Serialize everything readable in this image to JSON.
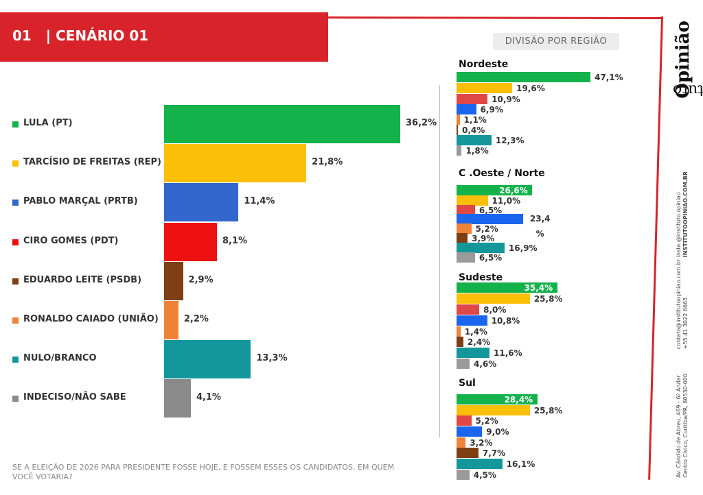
{
  "header": {
    "number": "01",
    "separator": "|",
    "title": "CENÁRIO 01"
  },
  "region_heading": "DIVISÃO POR REGIÃO",
  "question": "SE A ELEIÇÃO DE 2026 PARA PRESIDENTE FOSSE HOJE, E FOSSEM ESSES OS CANDIDATOS, EM QUEM VOCÊ VOTARIA?",
  "brand": {
    "name_a": "Instituto ",
    "name_b": "Opinião"
  },
  "contacts": {
    "social_1": "insta @instituto.opiniao",
    "social_2": "INSTITUTOOPINIAO.COM.BR",
    "email": "contato@institutoopiniao.com.br",
    "phone": "+55 41 3022 6665",
    "address_1": "Av. Cândido de Abreu, 469 - 6º Andar",
    "address_2": "Centro Cívico, Curitiba/PR, 80530-000"
  },
  "colors": [
    "#13b24b",
    "#fbbf07",
    "#3366cc",
    "#ee1111",
    "#7f3f14",
    "#ef8337",
    "#13979b",
    "#8a8a8a"
  ],
  "region_colors": [
    "#13b24b",
    "#fbbf07",
    "#e04848",
    "#1a66ee",
    "#ef8337",
    "#7f3f14",
    "#13979b",
    "#9a9a9a"
  ],
  "chart_data": [
    {
      "type": "bar",
      "title": "CENÁRIO 01",
      "categories": [
        "LULA (PT)",
        "TARCÍSIO DE FREITAS (REP)",
        "PABLO MARÇAL (PRTB)",
        "CIRO GOMES (PDT)",
        "EDUARDO LEITE (PSDB)",
        "RONALDO CAIADO (UNIÃO)",
        "NULO/BRANCO",
        "INDECISO/NÃO SABE"
      ],
      "values": [
        36.2,
        21.8,
        11.4,
        8.1,
        2.9,
        2.2,
        13.3,
        4.1
      ],
      "labels": [
        "36,2%",
        "21,8%",
        "11,4%",
        "8,1%",
        "2,9%",
        "2,2%",
        "13,3%",
        "4,1%"
      ]
    },
    {
      "type": "bar",
      "title": "Nordeste",
      "values": [
        47.1,
        19.6,
        10.9,
        6.9,
        1.1,
        0.4,
        12.3,
        1.8
      ],
      "labels": [
        "47,1%",
        "19,6%",
        "10,9%",
        "6,9%",
        "1,1%",
        "0,4%",
        "12,3%",
        "1,8%"
      ]
    },
    {
      "type": "bar",
      "title": "C .Oeste / Norte",
      "values": [
        26.6,
        11.0,
        6.5,
        23.4,
        5.2,
        3.9,
        16.9,
        6.5
      ],
      "labels": [
        "26,6%",
        "11,0%",
        "6,5%",
        "23,4\n%",
        "5,2%",
        "3,9%",
        "16,9%",
        "6,5%"
      ]
    },
    {
      "type": "bar",
      "title": "Sudeste",
      "values": [
        35.4,
        25.8,
        8.0,
        10.8,
        1.4,
        2.4,
        11.6,
        4.6
      ],
      "labels": [
        "35,4%",
        "25,8%",
        "8,0%",
        "10,8%",
        "1,4%",
        "2,4%",
        "11,6%",
        "4,6%"
      ]
    },
    {
      "type": "bar",
      "title": "Sul",
      "values": [
        28.4,
        25.8,
        5.2,
        9.0,
        3.2,
        7.7,
        16.1,
        4.5
      ],
      "labels": [
        "28,4%",
        "25,8%",
        "5,2%",
        "9,0%",
        "3,2%",
        "7,7%",
        "16,1%",
        "4,5%"
      ]
    }
  ]
}
